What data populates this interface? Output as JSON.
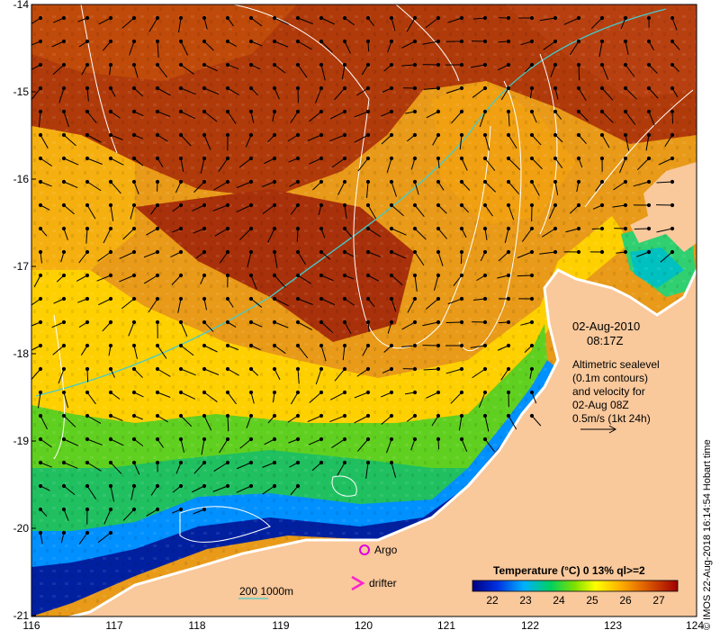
{
  "map": {
    "y_axis_labels": [
      "-14",
      "-15",
      "-16",
      "-17",
      "-18",
      "-19",
      "-20",
      "-21"
    ],
    "x_axis_labels": [
      "116",
      "117",
      "118",
      "119",
      "120",
      "121",
      "122",
      "123",
      "124"
    ],
    "lat_range": [
      -21,
      -14
    ],
    "lon_range": [
      116,
      124
    ]
  },
  "annotation": {
    "date": "02-Aug-2010",
    "time": "08:17Z",
    "desc_lines": [
      "Altimetric sealevel",
      "(0.1m contours)",
      "and velocity for",
      "02-Aug 08Z",
      "0.5m/s (1kt 24h)"
    ]
  },
  "legend": {
    "argo": "Argo",
    "drifter": "drifter",
    "bathy": "200  1000m",
    "colorbar_title": "Temperature (°C) 0 13% ql>=2",
    "colorbar_ticks": [
      "22",
      "23",
      "24",
      "25",
      "26",
      "27"
    ],
    "colorbar_range": [
      21.5,
      27.7
    ]
  },
  "credit": "© IMOS 22-Aug-2018 16:14:54 Hobart time",
  "colors": {
    "land": "#f9c89b",
    "argo_marker": "#e000e0",
    "drifter_marker": "#ff22cc",
    "bathy_200": "#44cccc",
    "contour": "#ffffff"
  }
}
